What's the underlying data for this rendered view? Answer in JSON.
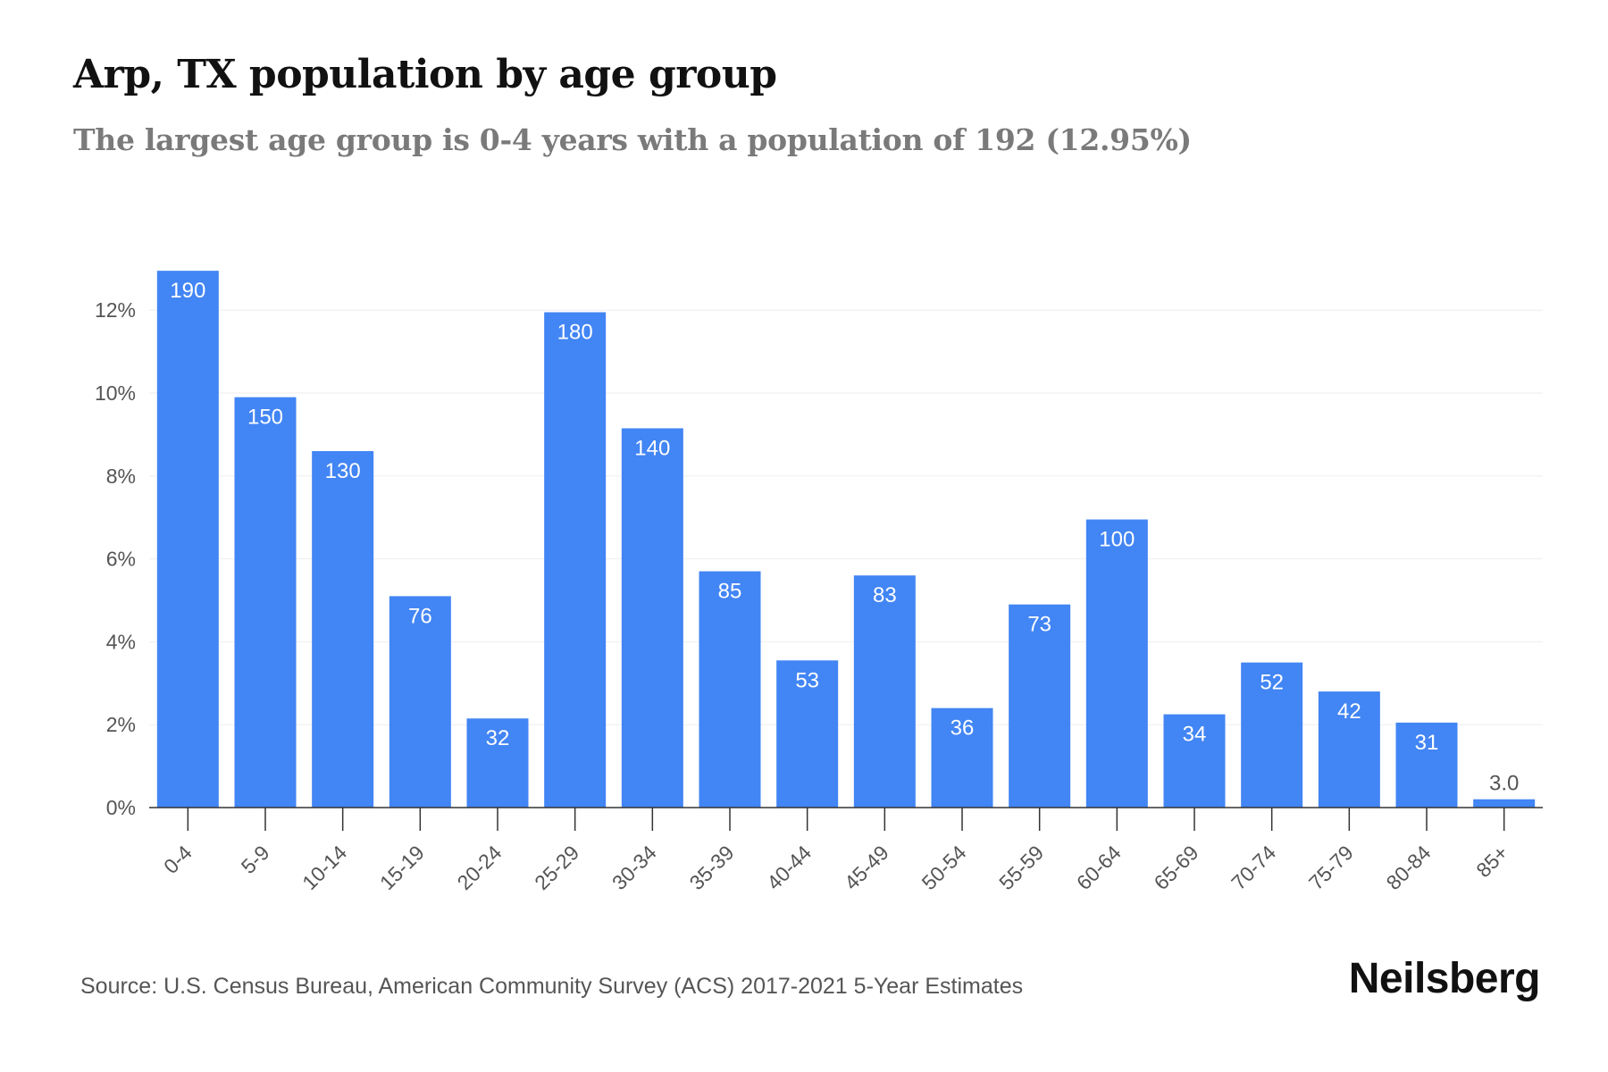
{
  "header": {
    "title": "Arp, TX population by age group",
    "subtitle": "The largest age group is 0-4 years with a population of 192 (12.95%)"
  },
  "footer": {
    "source": "Source: U.S. Census Bureau, American Community Survey (ACS) 2017-2021 5-Year Estimates",
    "brand": "Neilsberg"
  },
  "colors": {
    "bar": "#4285f4",
    "label_inside": "#ffffff",
    "label_outside": "#555555",
    "grid": "#eeeeee",
    "axis": "#333333"
  },
  "chart_data": {
    "type": "bar",
    "categories": [
      "0-4",
      "5-9",
      "10-14",
      "15-19",
      "20-24",
      "25-29",
      "30-34",
      "35-39",
      "40-44",
      "45-49",
      "50-54",
      "55-59",
      "60-64",
      "65-69",
      "70-74",
      "75-79",
      "80-84",
      "85+"
    ],
    "values": [
      12.95,
      9.9,
      8.6,
      5.1,
      2.15,
      11.95,
      9.15,
      5.7,
      3.55,
      5.6,
      2.4,
      4.9,
      6.95,
      2.25,
      3.5,
      2.8,
      2.05,
      0.2
    ],
    "data_labels": [
      "190",
      "150",
      "130",
      "76",
      "32",
      "180",
      "140",
      "85",
      "53",
      "83",
      "36",
      "73",
      "100",
      "34",
      "52",
      "42",
      "31",
      "3.0"
    ],
    "y_ticks": [
      "0%",
      "2%",
      "4%",
      "6%",
      "8%",
      "10%",
      "12%"
    ],
    "y_tick_values": [
      0,
      2,
      4,
      6,
      8,
      10,
      12
    ],
    "ylim": [
      0,
      12.95
    ],
    "grid": true,
    "legend": false
  }
}
